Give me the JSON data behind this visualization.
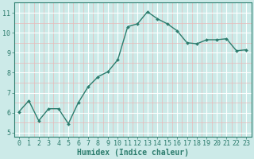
{
  "x": [
    0,
    1,
    2,
    3,
    4,
    5,
    6,
    7,
    8,
    9,
    10,
    11,
    12,
    13,
    14,
    15,
    16,
    17,
    18,
    19,
    20,
    21,
    22,
    23
  ],
  "y": [
    6.05,
    6.6,
    5.6,
    6.2,
    6.2,
    5.45,
    6.5,
    7.3,
    7.8,
    8.05,
    8.65,
    10.3,
    10.45,
    11.05,
    10.7,
    10.45,
    10.1,
    9.5,
    9.45,
    9.65,
    9.65,
    9.7,
    9.1,
    9.15
  ],
  "line_color": "#2d7d6e",
  "marker": "D",
  "marker_size": 2.0,
  "bg_color": "#cceae8",
  "grid_major_color": "#ffffff",
  "grid_minor_color": "#e8b8b8",
  "xlabel": "Humidex (Indice chaleur)",
  "xlim": [
    -0.5,
    23.5
  ],
  "ylim": [
    4.8,
    11.5
  ],
  "yticks": [
    5,
    6,
    7,
    8,
    9,
    10,
    11
  ],
  "xticks": [
    0,
    1,
    2,
    3,
    4,
    5,
    6,
    7,
    8,
    9,
    10,
    11,
    12,
    13,
    14,
    15,
    16,
    17,
    18,
    19,
    20,
    21,
    22,
    23
  ],
  "xlabel_fontsize": 7,
  "tick_fontsize": 6,
  "line_width": 1.0
}
